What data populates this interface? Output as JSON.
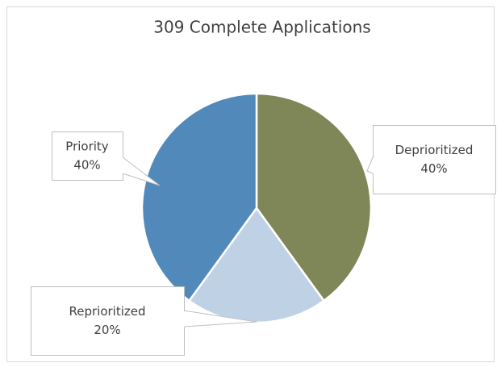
{
  "chart_data": {
    "type": "pie",
    "title": "309 Complete Applications",
    "categories": [
      "Deprioritized",
      "Reprioritized",
      "Priority"
    ],
    "values": [
      40,
      20,
      40
    ],
    "value_labels": [
      "40%",
      "20%",
      "40%"
    ],
    "colors": [
      "#7f8759",
      "#bfd2e5",
      "#5289bb"
    ]
  }
}
